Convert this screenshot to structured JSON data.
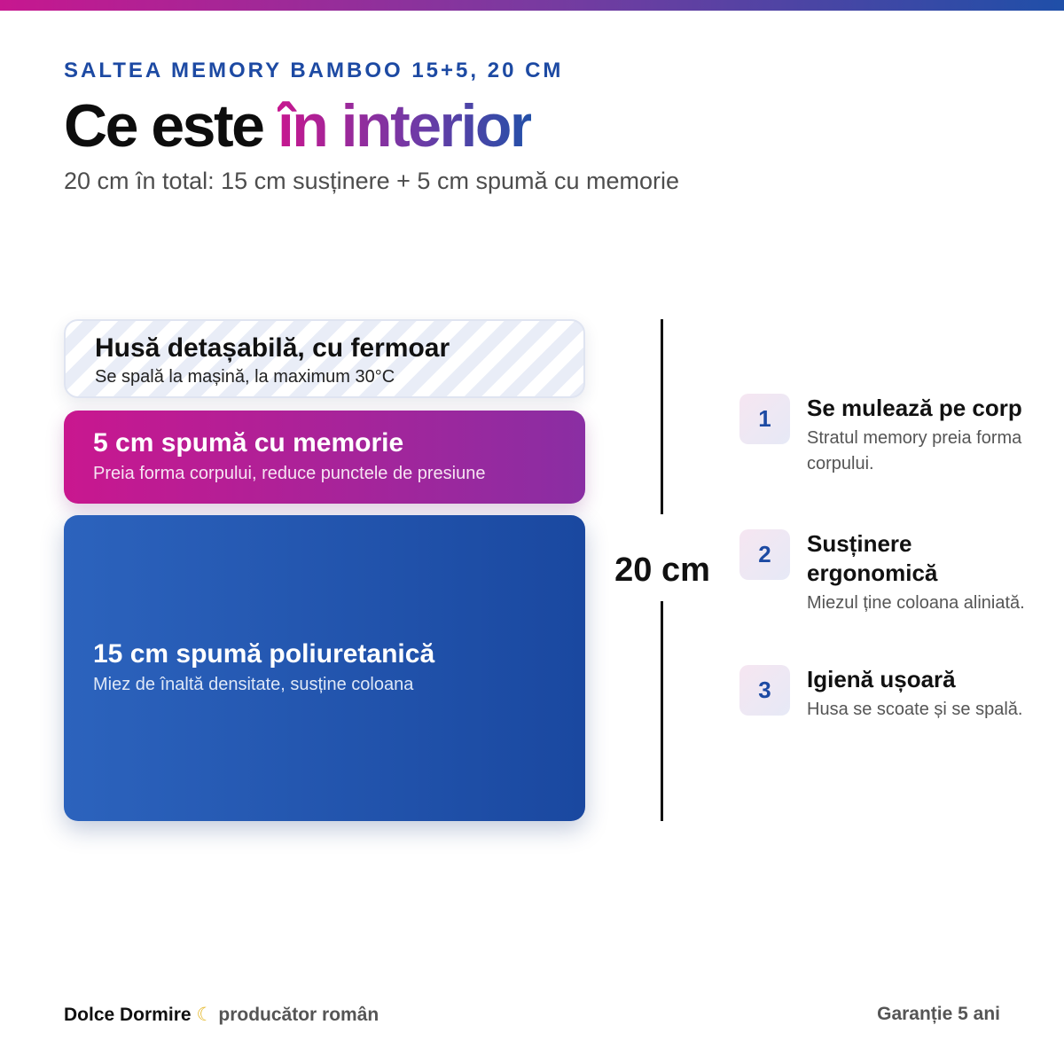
{
  "header": {
    "eyebrow": "SALTEA MEMORY BAMBOO 15+5, 20 CM",
    "title_plain": "Ce este ",
    "title_highlight": "în interior",
    "subtitle": "20 cm în total: 15 cm susținere + 5 cm spumă cu memorie"
  },
  "layers": {
    "cover": {
      "title": "Husă detașabilă, cu fermoar",
      "desc": "Se spală la mașină, la maximum 30°C"
    },
    "memory": {
      "title": "5 cm spumă cu memorie",
      "desc": "Preia forma corpului, reduce punctele de presiune",
      "thickness_cm": 5
    },
    "poly": {
      "title": "15 cm spumă poliuretanică",
      "desc": "Miez de înaltă densitate, susține coloana",
      "thickness_cm": 15
    }
  },
  "measure": {
    "label": "20 cm",
    "total_cm": 20
  },
  "features": [
    {
      "number": "1",
      "title": "Se mulează pe corp",
      "desc": "Stratul memory preia forma corpului."
    },
    {
      "number": "2",
      "title": "Susținere ergonomică",
      "desc": "Miezul ține coloana aliniată."
    },
    {
      "number": "3",
      "title": "Igienă ușoară",
      "desc": "Husa se scoate și se spală."
    }
  ],
  "footer": {
    "brand": "Dolce Dormire",
    "moon_icon": "☾",
    "tagline": "producător român",
    "warranty": "Garanție 5 ani"
  },
  "colors": {
    "accent_magenta": "#c7178f",
    "accent_purple": "#7a3aa0",
    "accent_blue": "#1f4fa8",
    "text_dark": "#111111",
    "moon_yellow": "#e5b829"
  }
}
